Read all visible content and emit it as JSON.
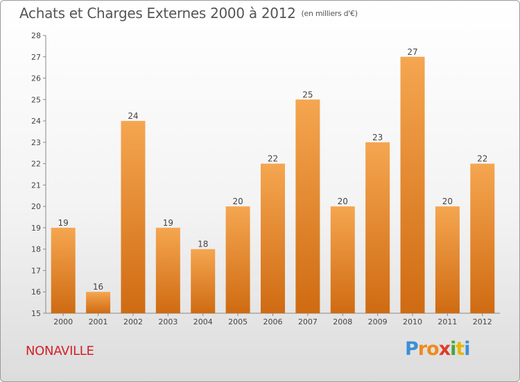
{
  "title": "Achats et Charges Externes 2000 à 2012",
  "subtitle": "(en milliers d'€)",
  "commune": "NONAVILLE",
  "logo": {
    "p": "P",
    "r": "r",
    "o": "o",
    "x": "x",
    "i1": "i",
    "t": "t",
    "i2": "i"
  },
  "colors": {
    "bar_top": "#f5a650",
    "bar_bottom": "#cf6b12",
    "title": "#555555",
    "commune": "#d4202a"
  },
  "chart_data": {
    "type": "bar",
    "categories": [
      "2000",
      "2001",
      "2002",
      "2003",
      "2004",
      "2005",
      "2006",
      "2007",
      "2008",
      "2009",
      "2010",
      "2011",
      "2012"
    ],
    "values": [
      19,
      16,
      24,
      19,
      18,
      20,
      22,
      25,
      20,
      23,
      27,
      20,
      22
    ],
    "ylim": [
      15,
      28
    ],
    "yticks": [
      15,
      16,
      17,
      18,
      19,
      20,
      21,
      22,
      23,
      24,
      25,
      26,
      27,
      28
    ],
    "grid": false,
    "xlabel": "",
    "ylabel": ""
  }
}
